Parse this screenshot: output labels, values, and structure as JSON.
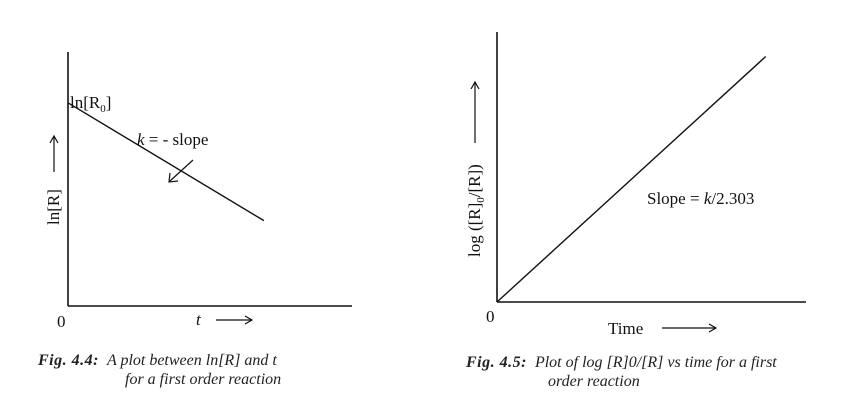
{
  "chart_data": [
    {
      "type": "line",
      "title": "",
      "xlabel": "t",
      "ylabel": "ln[R]",
      "origin_label": "0",
      "intercept_label_base": "ln[R",
      "intercept_label_sub": "0",
      "intercept_label_close": "]",
      "annotation": "k = - slope",
      "annotation_k": "k",
      "annotation_rest": " = - slope",
      "series": [
        {
          "x": [
            0,
            1
          ],
          "y": [
            1,
            0.42
          ]
        }
      ],
      "xlim": [
        0,
        1.45
      ],
      "ylim": [
        0,
        1.25
      ],
      "grid": false,
      "caption": {
        "figure": "Fig. 4.4:",
        "line1": "A plot between ln[R] and t",
        "line2": "for a first order reaction"
      }
    },
    {
      "type": "line",
      "title": "",
      "xlabel": "Time",
      "ylabel": "log [R]0/[R]",
      "ylabel_base": "log ([R]",
      "ylabel_sub": "0",
      "ylabel_close": "/[R])",
      "origin_label": "0",
      "annotation": "Slope = k/2.303",
      "annotation_pre": "Slope = ",
      "annotation_k": "k",
      "annotation_post": "/2.303",
      "series": [
        {
          "x": [
            0,
            1
          ],
          "y": [
            0,
            1
          ]
        }
      ],
      "xlim": [
        0,
        1.15
      ],
      "ylim": [
        0,
        1.1
      ],
      "grid": false,
      "caption": {
        "figure": "Fig. 4.5:",
        "line1": "Plot of log [R]0/[R] vs time for a first",
        "line2": "order reaction"
      }
    }
  ]
}
